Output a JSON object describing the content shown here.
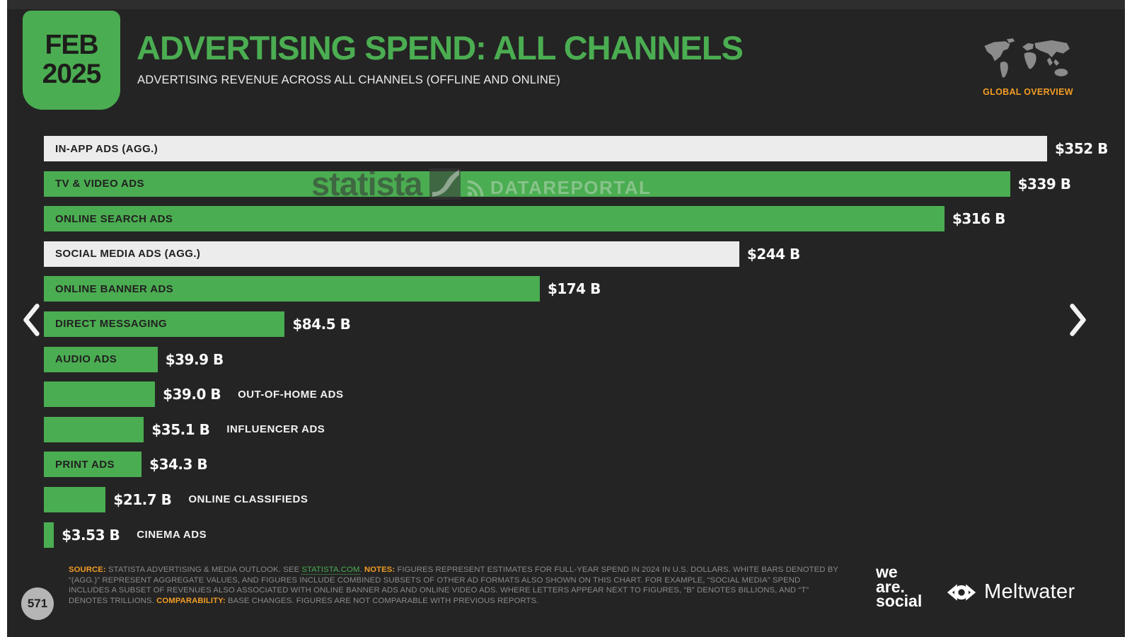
{
  "header": {
    "date_line1": "FEB",
    "date_line2": "2025",
    "title": "ADVERTISING SPEND: ALL CHANNELS",
    "subtitle": "ADVERTISING REVENUE ACROSS ALL CHANNELS (OFFLINE AND ONLINE)",
    "region_label": "GLOBAL OVERVIEW"
  },
  "colors": {
    "accent_green": "#4bad51",
    "highlight_orange": "#f29d25",
    "bar_white": "#ececec",
    "background_dark": "#242424",
    "footer_gray": "#8a8a8a",
    "map_gray": "#8b8b8b"
  },
  "chart_data": {
    "type": "bar",
    "orientation": "horizontal",
    "title": "ADVERTISING SPEND: ALL CHANNELS",
    "unit": "U.S. dollars, billions",
    "xlim": [
      0,
      352
    ],
    "max_value": 352,
    "bars": [
      {
        "label": "IN-APP ADS (AGG.)",
        "value": 352,
        "value_label": "$352 B",
        "color": "white",
        "label_position": "inside"
      },
      {
        "label": "TV & VIDEO ADS",
        "value": 339,
        "value_label": "$339 B",
        "color": "green",
        "label_position": "inside"
      },
      {
        "label": "ONLINE SEARCH ADS",
        "value": 316,
        "value_label": "$316 B",
        "color": "green",
        "label_position": "inside"
      },
      {
        "label": "SOCIAL MEDIA ADS (AGG.)",
        "value": 244,
        "value_label": "$244 B",
        "color": "white",
        "label_position": "inside"
      },
      {
        "label": "ONLINE BANNER ADS",
        "value": 174,
        "value_label": "$174 B",
        "color": "green",
        "label_position": "inside"
      },
      {
        "label": "DIRECT MESSAGING",
        "value": 84.5,
        "value_label": "$84.5 B",
        "color": "green",
        "label_position": "inside"
      },
      {
        "label": "AUDIO ADS",
        "value": 39.9,
        "value_label": "$39.9 B",
        "color": "green",
        "label_position": "inside"
      },
      {
        "label": "OUT-OF-HOME ADS",
        "value": 39.0,
        "value_label": "$39.0 B",
        "color": "green",
        "label_position": "outside"
      },
      {
        "label": "INFLUENCER ADS",
        "value": 35.1,
        "value_label": "$35.1 B",
        "color": "green",
        "label_position": "outside"
      },
      {
        "label": "PRINT ADS",
        "value": 34.3,
        "value_label": "$34.3 B",
        "color": "green",
        "label_position": "inside"
      },
      {
        "label": "ONLINE CLASSIFIEDS",
        "value": 21.7,
        "value_label": "$21.7 B",
        "color": "green",
        "label_position": "outside"
      },
      {
        "label": "CINEMA ADS",
        "value": 3.53,
        "value_label": "$3.53 B",
        "color": "green",
        "label_position": "outside"
      }
    ]
  },
  "watermarks": {
    "statista": "statista",
    "datareportal": "DATAREPORTAL"
  },
  "footer": {
    "page_number": "571",
    "segments": [
      {
        "style": "orange",
        "text": "SOURCE: "
      },
      {
        "style": "gray",
        "text": "STATISTA ADVERTISING & MEDIA OUTLOOK. SEE "
      },
      {
        "style": "link",
        "text": "STATISTA.COM"
      },
      {
        "style": "gray",
        "text": ". "
      },
      {
        "style": "orange",
        "text": "NOTES: "
      },
      {
        "style": "gray",
        "text": "FIGURES REPRESENT ESTIMATES FOR FULL-YEAR SPEND IN 2024 IN U.S. DOLLARS. WHITE BARS DENOTED BY “(AGG.)” REPRESENT AGGREGATE VALUES, AND FIGURES INCLUDE COMBINED SUBSETS OF OTHER AD FORMATS ALSO SHOWN ON THIS CHART. FOR EXAMPLE, “SOCIAL MEDIA” SPEND INCLUDES A SUBSET OF REVENUES ALSO ASSOCIATED WITH ONLINE BANNER ADS AND ONLINE VIDEO ADS. WHERE LETTERS APPEAR NEXT TO FIGURES,  “B” DENOTES BILLIONS, AND “T” DENOTES TRILLIONS. "
      },
      {
        "style": "orange",
        "text": "COMPARABILITY: "
      },
      {
        "style": "gray",
        "text": "BASE CHANGES. FIGURES ARE NOT COMPARABLE WITH PREVIOUS REPORTS."
      }
    ],
    "brand_we_are_social": [
      "we",
      "are.",
      "social"
    ],
    "brand_meltwater": "Meltwater"
  }
}
